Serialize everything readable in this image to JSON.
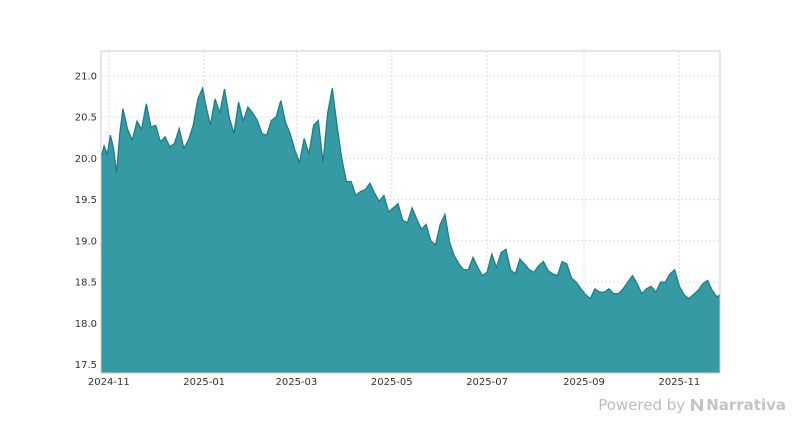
{
  "chart_data": {
    "type": "area",
    "title": "",
    "xlabel": "",
    "ylabel": "",
    "grid": true,
    "ylim": [
      17.4,
      21.3
    ],
    "xlim": [
      "2024-10-27",
      "2025-11-27"
    ],
    "y_ticks": [
      17.5,
      18.0,
      18.5,
      19.0,
      19.5,
      20.0,
      20.5,
      21.0
    ],
    "y_tick_labels": [
      "17.5",
      "18.0",
      "18.5",
      "19.0",
      "19.5",
      "20.0",
      "20.5",
      "21.0"
    ],
    "x_ticks": [
      "2024-11-01",
      "2025-01-01",
      "2025-03-01",
      "2025-05-01",
      "2025-07-01",
      "2025-09-01",
      "2025-11-01"
    ],
    "x_tick_labels": [
      "2024-11",
      "2025-01",
      "2025-03",
      "2025-05",
      "2025-07",
      "2025-09",
      "2025-11"
    ],
    "colors": {
      "fill": "#2a959f",
      "line": "#1d7e87",
      "grid": "#dddddd",
      "frame": "#cccccc"
    },
    "series": [
      {
        "x": [
          "2024-10-27",
          "2024-10-29",
          "2024-10-31",
          "2024-11-02",
          "2024-11-04",
          "2024-11-06",
          "2024-11-08",
          "2024-11-10",
          "2024-11-13",
          "2024-11-16",
          "2024-11-19",
          "2024-11-22",
          "2024-11-25",
          "2024-11-28",
          "2024-12-01",
          "2024-12-04",
          "2024-12-07",
          "2024-12-10",
          "2024-12-13",
          "2024-12-16",
          "2024-12-19",
          "2024-12-22",
          "2024-12-25",
          "2024-12-28",
          "2024-12-31",
          "2025-01-02",
          "2025-01-05",
          "2025-01-08",
          "2025-01-11",
          "2025-01-14",
          "2025-01-17",
          "2025-01-20",
          "2025-01-23",
          "2025-01-26",
          "2025-01-29",
          "2025-02-01",
          "2025-02-04",
          "2025-02-07",
          "2025-02-10",
          "2025-02-13",
          "2025-02-16",
          "2025-02-19",
          "2025-02-22",
          "2025-02-25",
          "2025-02-28",
          "2025-03-03",
          "2025-03-06",
          "2025-03-09",
          "2025-03-12",
          "2025-03-15",
          "2025-03-18",
          "2025-03-21",
          "2025-03-24",
          "2025-03-27",
          "2025-03-30",
          "2025-04-02",
          "2025-04-05",
          "2025-04-08",
          "2025-04-11",
          "2025-04-14",
          "2025-04-17",
          "2025-04-20",
          "2025-04-23",
          "2025-04-26",
          "2025-04-29",
          "2025-05-02",
          "2025-05-05",
          "2025-05-08",
          "2025-05-11",
          "2025-05-14",
          "2025-05-17",
          "2025-05-20",
          "2025-05-23",
          "2025-05-26",
          "2025-05-29",
          "2025-06-01",
          "2025-06-04",
          "2025-06-07",
          "2025-06-10",
          "2025-06-13",
          "2025-06-16",
          "2025-06-19",
          "2025-06-22",
          "2025-06-25",
          "2025-06-28",
          "2025-07-01",
          "2025-07-04",
          "2025-07-07",
          "2025-07-10",
          "2025-07-13",
          "2025-07-16",
          "2025-07-19",
          "2025-07-22",
          "2025-07-25",
          "2025-07-28",
          "2025-07-31",
          "2025-08-03",
          "2025-08-06",
          "2025-08-09",
          "2025-08-12",
          "2025-08-15",
          "2025-08-18",
          "2025-08-21",
          "2025-08-24",
          "2025-08-27",
          "2025-08-30",
          "2025-09-02",
          "2025-09-05",
          "2025-09-08",
          "2025-09-11",
          "2025-09-14",
          "2025-09-17",
          "2025-09-20",
          "2025-09-23",
          "2025-09-26",
          "2025-09-29",
          "2025-10-02",
          "2025-10-05",
          "2025-10-08",
          "2025-10-11",
          "2025-10-14",
          "2025-10-17",
          "2025-10-20",
          "2025-10-23",
          "2025-10-26",
          "2025-10-29",
          "2025-11-01",
          "2025-11-04",
          "2025-11-07",
          "2025-11-10",
          "2025-11-13",
          "2025-11-16",
          "2025-11-19",
          "2025-11-22",
          "2025-11-25",
          "2025-11-27"
        ],
        "y": [
          20.0,
          20.15,
          20.05,
          20.28,
          20.12,
          19.82,
          20.3,
          20.6,
          20.35,
          20.22,
          20.45,
          20.35,
          20.66,
          20.38,
          20.4,
          20.2,
          20.26,
          20.14,
          20.18,
          20.36,
          20.12,
          20.22,
          20.4,
          20.72,
          20.85,
          20.65,
          20.4,
          20.72,
          20.55,
          20.84,
          20.5,
          20.3,
          20.68,
          20.45,
          20.62,
          20.55,
          20.46,
          20.3,
          20.28,
          20.46,
          20.5,
          20.7,
          20.44,
          20.3,
          20.1,
          19.95,
          20.24,
          20.05,
          20.4,
          20.46,
          19.95,
          20.55,
          20.85,
          20.4,
          20.0,
          19.72,
          19.72,
          19.55,
          19.6,
          19.62,
          19.7,
          19.58,
          19.48,
          19.55,
          19.35,
          19.4,
          19.45,
          19.25,
          19.22,
          19.4,
          19.26,
          19.14,
          19.2,
          19.0,
          18.95,
          19.2,
          19.32,
          18.98,
          18.82,
          18.72,
          18.65,
          18.65,
          18.8,
          18.68,
          18.58,
          18.62,
          18.84,
          18.68,
          18.86,
          18.9,
          18.65,
          18.6,
          18.78,
          18.72,
          18.65,
          18.62,
          18.7,
          18.75,
          18.64,
          18.6,
          18.58,
          18.75,
          18.72,
          18.55,
          18.5,
          18.42,
          18.35,
          18.3,
          18.42,
          18.38,
          18.38,
          18.42,
          18.36,
          18.36,
          18.42,
          18.5,
          18.58,
          18.48,
          18.36,
          18.42,
          18.45,
          18.38,
          18.5,
          18.5,
          18.6,
          18.65,
          18.45,
          18.35,
          18.3,
          18.35,
          18.4,
          18.48,
          18.52,
          18.4,
          18.32,
          18.35
        ]
      }
    ]
  },
  "footer": {
    "powered_by": "Powered by",
    "brand": "Narrativa"
  }
}
